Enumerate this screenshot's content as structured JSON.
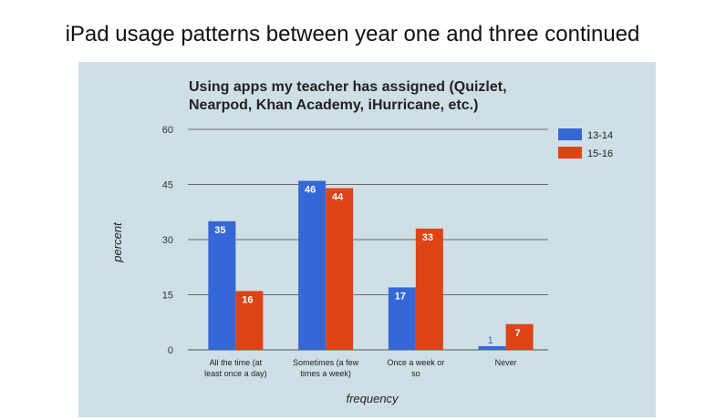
{
  "page": {
    "title": "iPad usage patterns between year one and three continued"
  },
  "chart_data": {
    "type": "bar",
    "title_lines": [
      "Using apps my teacher has assigned (Quizlet,",
      "Nearpod, Khan Academy, iHurricane, etc.)"
    ],
    "categories": [
      [
        "All the time (at",
        "least once a day)"
      ],
      [
        "Sometimes (a few",
        "times a week)"
      ],
      [
        "Once a week or",
        "so"
      ],
      [
        "Never"
      ]
    ],
    "series": [
      {
        "name": "13-14",
        "color": "#3568d6",
        "values": [
          35,
          46,
          17,
          1
        ]
      },
      {
        "name": "15-16",
        "color": "#dd4415",
        "values": [
          16,
          44,
          33,
          7
        ]
      }
    ],
    "xlabel": "frequency",
    "ylabel": "percent",
    "ylim": [
      0,
      60
    ],
    "yticks": [
      0,
      15,
      30,
      45,
      60
    ],
    "grid": true,
    "legend_position": "top-right",
    "background": "#cfdfe6"
  }
}
